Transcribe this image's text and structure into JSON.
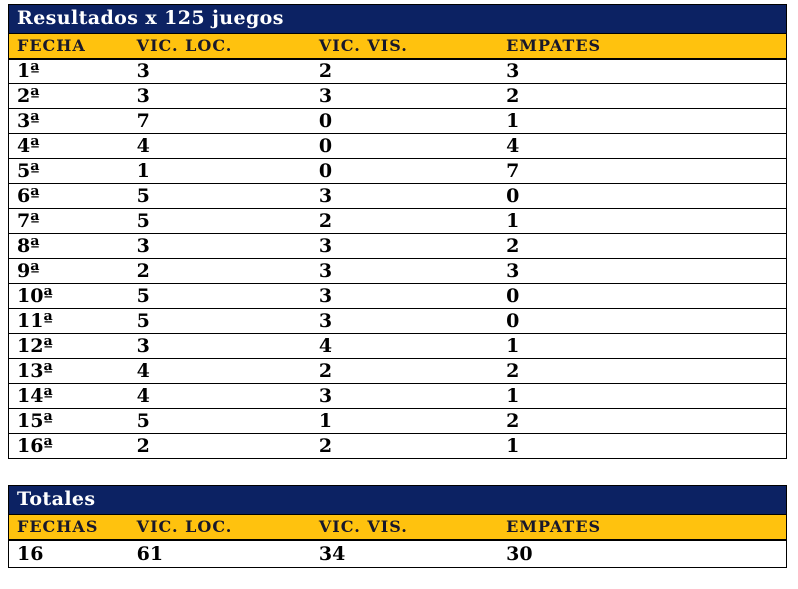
{
  "colors": {
    "navy": "#0c2263",
    "gold": "#ffc20e",
    "header_text": "#18182b",
    "body_text": "#000000",
    "title_text": "#ffffff"
  },
  "results_table": {
    "title": "Resultados x 125 juegos",
    "columns": [
      "FECHA",
      "VIC. LOC.",
      "VIC. VIS.",
      "EMPATES"
    ],
    "rows": [
      {
        "fecha": "1ª",
        "vic_loc": "3",
        "vic_vis": "2",
        "empates": "3"
      },
      {
        "fecha": "2ª",
        "vic_loc": "3",
        "vic_vis": "3",
        "empates": "2"
      },
      {
        "fecha": "3ª",
        "vic_loc": "7",
        "vic_vis": "0",
        "empates": "1"
      },
      {
        "fecha": "4ª",
        "vic_loc": "4",
        "vic_vis": "0",
        "empates": "4"
      },
      {
        "fecha": "5ª",
        "vic_loc": "1",
        "vic_vis": "0",
        "empates": "7"
      },
      {
        "fecha": "6ª",
        "vic_loc": "5",
        "vic_vis": "3",
        "empates": "0"
      },
      {
        "fecha": "7ª",
        "vic_loc": "5",
        "vic_vis": "2",
        "empates": "1"
      },
      {
        "fecha": "8ª",
        "vic_loc": "3",
        "vic_vis": "3",
        "empates": "2"
      },
      {
        "fecha": "9ª",
        "vic_loc": "2",
        "vic_vis": "3",
        "empates": "3"
      },
      {
        "fecha": "10ª",
        "vic_loc": "5",
        "vic_vis": "3",
        "empates": "0"
      },
      {
        "fecha": "11ª",
        "vic_loc": "5",
        "vic_vis": "3",
        "empates": "0"
      },
      {
        "fecha": "12ª",
        "vic_loc": "3",
        "vic_vis": "4",
        "empates": "1"
      },
      {
        "fecha": "13ª",
        "vic_loc": "4",
        "vic_vis": "2",
        "empates": "2"
      },
      {
        "fecha": "14ª",
        "vic_loc": "4",
        "vic_vis": "3",
        "empates": "1"
      },
      {
        "fecha": "15ª",
        "vic_loc": "5",
        "vic_vis": "1",
        "empates": "2"
      },
      {
        "fecha": "16ª",
        "vic_loc": "2",
        "vic_vis": "2",
        "empates": "1"
      }
    ]
  },
  "totals_table": {
    "title": "Totales",
    "columns": [
      "FECHAS",
      "VIC. LOC.",
      "VIC. VIS.",
      "EMPATES"
    ],
    "row": {
      "fechas": "16",
      "vic_loc": "61",
      "vic_vis": "34",
      "empates": "30"
    }
  }
}
